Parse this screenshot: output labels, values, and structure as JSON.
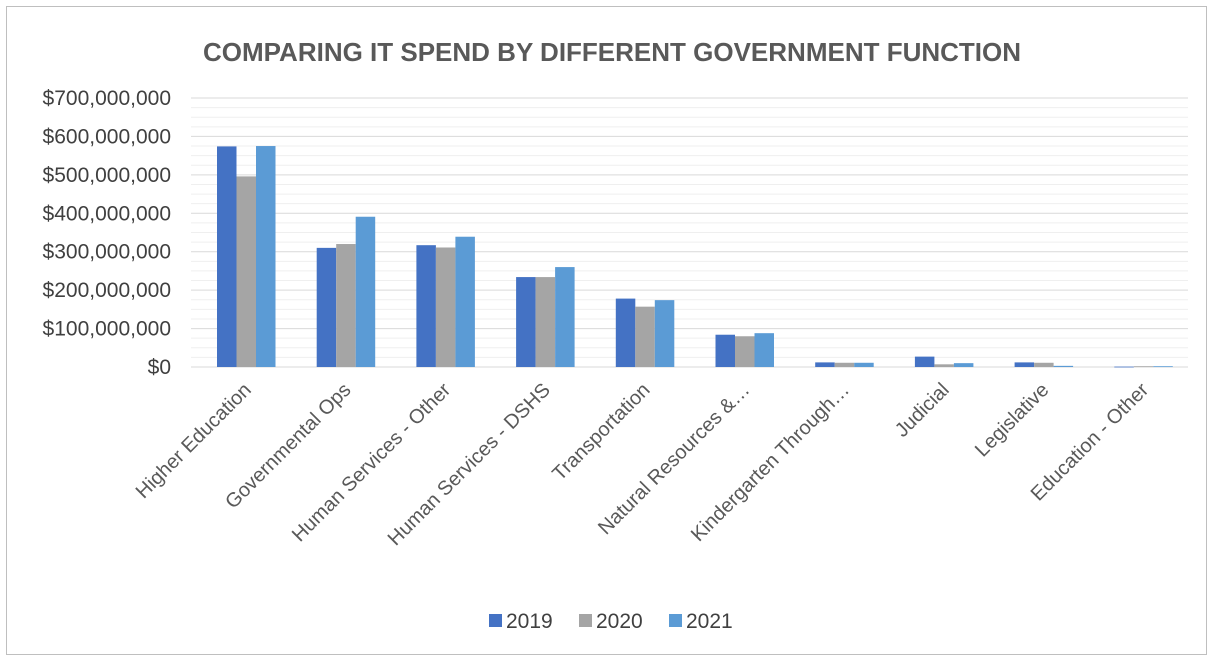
{
  "chart_data": {
    "type": "bar",
    "title": "COMPARING IT SPEND BY DIFFERENT GOVERNMENT FUNCTION",
    "xlabel": "",
    "ylabel": "",
    "ylim": [
      0,
      700000000
    ],
    "yticks": [
      0,
      100000000,
      200000000,
      300000000,
      400000000,
      500000000,
      600000000,
      700000000
    ],
    "ytick_labels": [
      "$0",
      "$100,000,000",
      "$200,000,000",
      "$300,000,000",
      "$400,000,000",
      "$500,000,000",
      "$600,000,000",
      "$700,000,000"
    ],
    "grid": true,
    "legend_position": "bottom",
    "categories": [
      "Higher Education",
      "Governmental Ops",
      "Human Services - Other",
      "Human Services - DSHS",
      "Transportation",
      "Natural Resources &…",
      "Kindergarten Through…",
      "Judicial",
      "Legislative",
      "Education - Other"
    ],
    "series": [
      {
        "name": "2019",
        "color": "#4472c4",
        "values": [
          574000000,
          310000000,
          317000000,
          234000000,
          178000000,
          84000000,
          12000000,
          27000000,
          12000000,
          1000000
        ]
      },
      {
        "name": "2020",
        "color": "#a5a5a5",
        "values": [
          496000000,
          320000000,
          311000000,
          234000000,
          157000000,
          80000000,
          11000000,
          7000000,
          11000000,
          2000000
        ]
      },
      {
        "name": "2021",
        "color": "#5b9bd5",
        "values": [
          575000000,
          391000000,
          339000000,
          260000000,
          174000000,
          88000000,
          11000000,
          10000000,
          3000000,
          2000000
        ]
      }
    ]
  }
}
